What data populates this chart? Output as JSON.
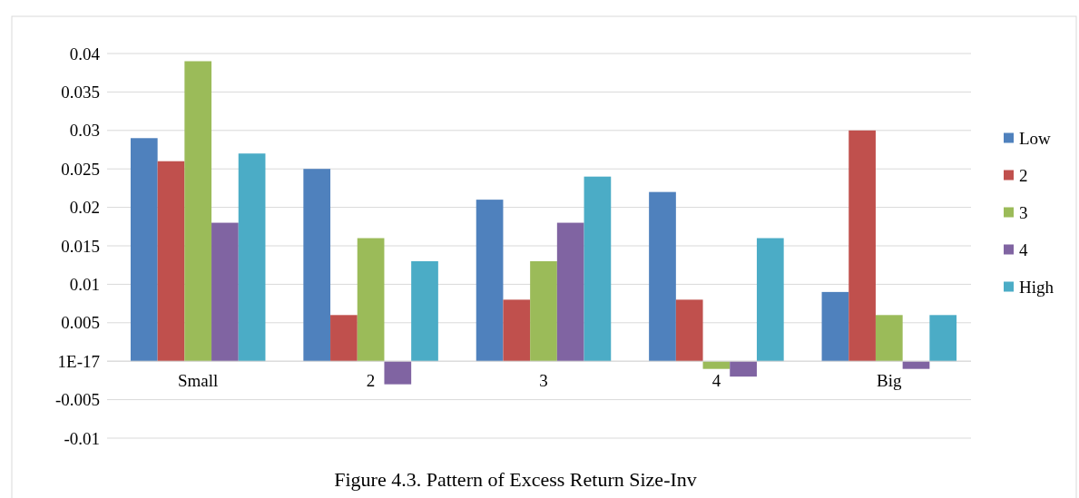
{
  "chart_data": {
    "type": "bar",
    "title": "Figure 4.3. Pattern of Excess Return Size-Inv",
    "categories": [
      "Small",
      "2",
      "3",
      "4",
      "Big"
    ],
    "series": [
      {
        "name": "Low",
        "color": "#4f81bd",
        "values": [
          0.029,
          0.025,
          0.021,
          0.022,
          0.009
        ]
      },
      {
        "name": "2",
        "color": "#c0504d",
        "values": [
          0.026,
          0.006,
          0.008,
          0.008,
          0.03
        ]
      },
      {
        "name": "3",
        "color": "#9bbb59",
        "values": [
          0.039,
          0.016,
          0.013,
          -0.001,
          0.006
        ]
      },
      {
        "name": "4",
        "color": "#8064a2",
        "values": [
          0.018,
          -0.003,
          0.018,
          -0.002,
          -0.001
        ]
      },
      {
        "name": "High",
        "color": "#4bacc6",
        "values": [
          0.027,
          0.013,
          0.024,
          0.016,
          0.006
        ]
      }
    ],
    "ylim": [
      -0.01,
      0.04
    ],
    "yticks": [
      -0.01,
      -0.005,
      {
        "value": 0,
        "label": "1E-17"
      },
      0.005,
      0.01,
      0.015,
      0.02,
      0.025,
      0.03,
      0.035,
      0.04
    ],
    "grid": "y",
    "legend": "right"
  }
}
